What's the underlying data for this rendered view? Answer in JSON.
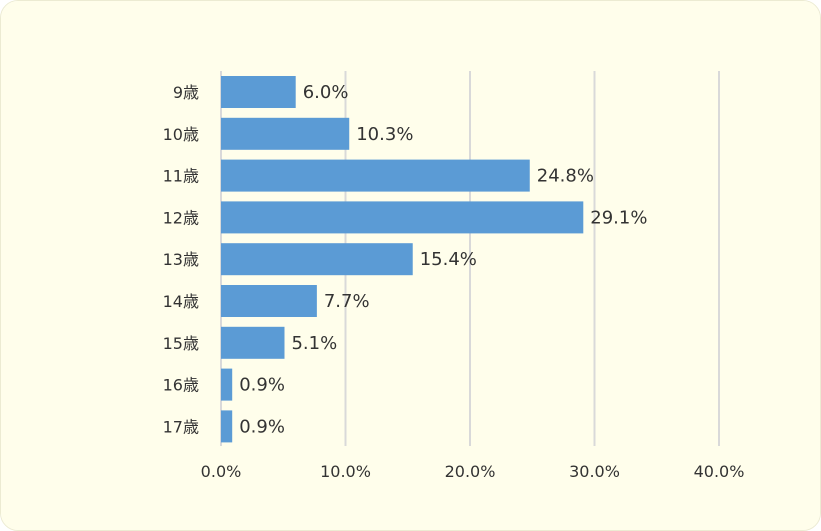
{
  "colors": {
    "background": "#fffeeb",
    "bar": "#5b9bd5",
    "grid": "#d9d9d9",
    "text": "#333333"
  },
  "chart_data": {
    "type": "bar",
    "orientation": "horizontal",
    "categories": [
      "9歳",
      "10歳",
      "11歳",
      "12歳",
      "13歳",
      "14歳",
      "15歳",
      "16歳",
      "17歳"
    ],
    "values": [
      6.0,
      10.3,
      24.8,
      29.1,
      15.4,
      7.7,
      5.1,
      0.9,
      0.9
    ],
    "data_labels": [
      "6.0%",
      "10.3%",
      "24.8%",
      "29.1%",
      "15.4%",
      "7.7%",
      "5.1%",
      "0.9%",
      "0.9%"
    ],
    "x_ticks": [
      0,
      10,
      20,
      30,
      40
    ],
    "x_tick_labels": [
      "0.0%",
      "10.0%",
      "20.0%",
      "30.0%",
      "40.0%"
    ],
    "xlim": [
      0,
      40
    ],
    "grid": true,
    "legend": false
  }
}
